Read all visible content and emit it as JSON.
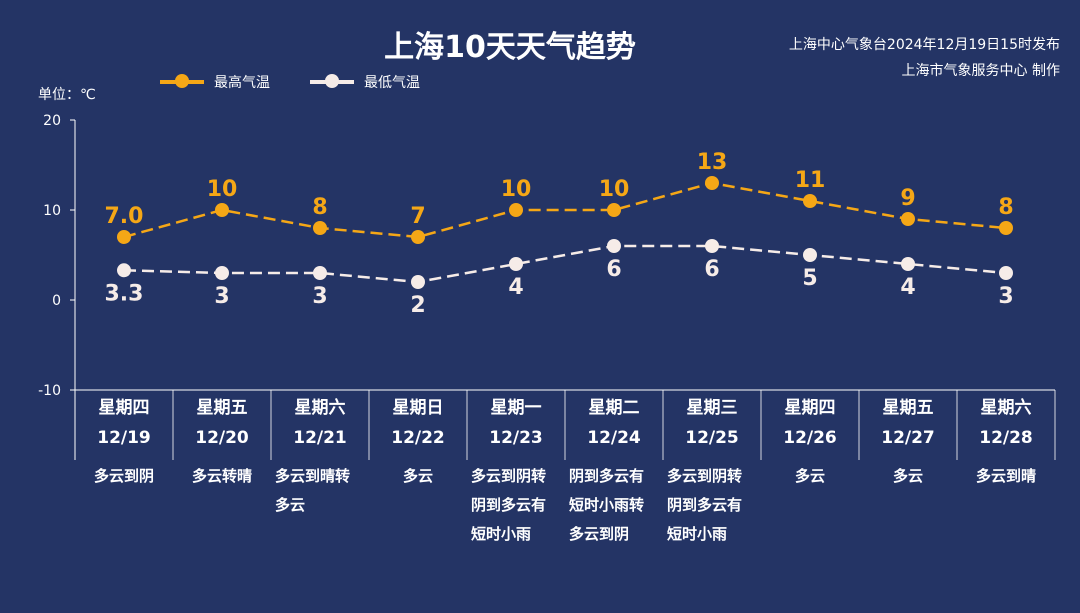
{
  "header": {
    "title": "上海10天天气趋势",
    "source_line1": "上海中心气象台2024年12月19日15时发布",
    "source_line2": "上海市气象服务中心 制作"
  },
  "colors": {
    "background": "#243465",
    "high": "#f5a716",
    "low": "#f6ece8"
  },
  "chart_data": {
    "type": "line",
    "unit_label": "单位：℃",
    "ylim": [
      -10,
      20
    ],
    "yticks": [
      "-10",
      "0",
      "10",
      "20"
    ],
    "grid": false,
    "legend_position": "top-left",
    "categories": [
      "12/19",
      "12/20",
      "12/21",
      "12/22",
      "12/23",
      "12/24",
      "12/25",
      "12/26",
      "12/27",
      "12/28"
    ],
    "series": [
      {
        "name": "最高气温",
        "values": [
          7.0,
          10,
          8,
          7,
          10,
          10,
          13,
          11,
          9,
          8
        ],
        "labels": [
          "7.0",
          "10",
          "8",
          "7",
          "10",
          "10",
          "13",
          "11",
          "9",
          "8"
        ],
        "color": "#f5a716",
        "line_style": "dashed"
      },
      {
        "name": "最低气温",
        "values": [
          3.3,
          3,
          3,
          2,
          4,
          6,
          6,
          5,
          4,
          3
        ],
        "labels": [
          "3.3",
          "3",
          "3",
          "2",
          "4",
          "6",
          "6",
          "5",
          "4",
          "3"
        ],
        "color": "#f6ece8",
        "line_style": "dashed"
      }
    ]
  },
  "days": [
    {
      "weekday": "星期四",
      "date": "12/19",
      "weather": [
        "多云到阴"
      ]
    },
    {
      "weekday": "星期五",
      "date": "12/20",
      "weather": [
        "多云转晴"
      ]
    },
    {
      "weekday": "星期六",
      "date": "12/21",
      "weather": [
        "多云到晴转",
        "多云"
      ]
    },
    {
      "weekday": "星期日",
      "date": "12/22",
      "weather": [
        "多云"
      ]
    },
    {
      "weekday": "星期一",
      "date": "12/23",
      "weather": [
        "多云到阴转",
        "阴到多云有",
        "短时小雨"
      ]
    },
    {
      "weekday": "星期二",
      "date": "12/24",
      "weather": [
        "阴到多云有",
        "短时小雨转",
        "多云到阴"
      ]
    },
    {
      "weekday": "星期三",
      "date": "12/25",
      "weather": [
        "多云到阴转",
        "阴到多云有",
        "短时小雨"
      ]
    },
    {
      "weekday": "星期四",
      "date": "12/26",
      "weather": [
        "多云"
      ]
    },
    {
      "weekday": "星期五",
      "date": "12/27",
      "weather": [
        "多云"
      ]
    },
    {
      "weekday": "星期六",
      "date": "12/28",
      "weather": [
        "多云到晴"
      ]
    }
  ]
}
